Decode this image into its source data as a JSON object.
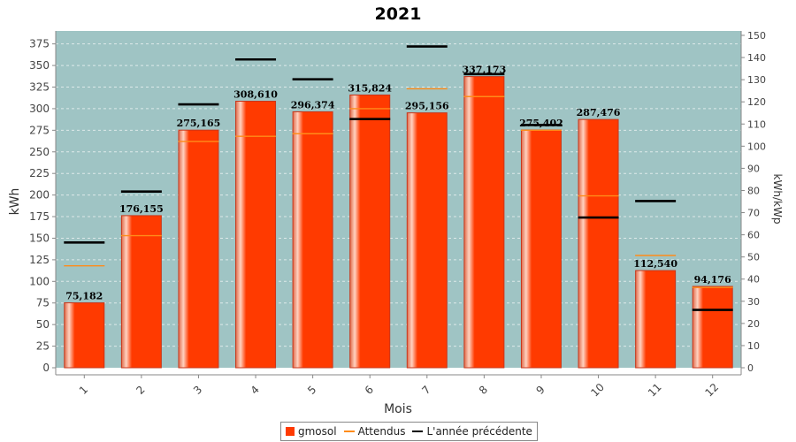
{
  "chart_data": {
    "type": "bar",
    "title": "2021",
    "xlabel": "Mois",
    "ylabel": "kWh",
    "y2label": "kWh/kWp",
    "ylim": [
      0,
      390
    ],
    "y2lim": [
      0,
      152
    ],
    "yticks": [
      0,
      25,
      50,
      75,
      100,
      125,
      150,
      175,
      200,
      225,
      250,
      275,
      300,
      325,
      350,
      375
    ],
    "y2ticks": [
      0,
      10,
      20,
      30,
      40,
      50,
      60,
      70,
      80,
      90,
      100,
      110,
      120,
      130,
      140,
      150
    ],
    "categories": [
      "1",
      "2",
      "3",
      "4",
      "5",
      "6",
      "7",
      "8",
      "9",
      "10",
      "11",
      "12"
    ],
    "grid": true,
    "legend_position": "bottom",
    "series": [
      {
        "name": "gmosol",
        "kind": "bar",
        "color": "#ff3a00",
        "values": [
          75.182,
          176.155,
          275.165,
          308.61,
          296.374,
          315.824,
          295.156,
          337.173,
          275.402,
          287.476,
          112.54,
          94.176
        ],
        "labels": [
          "75,182",
          "176,155",
          "275,165",
          "308,610",
          "296,374",
          "315,824",
          "295,156",
          "337,173",
          "275,402",
          "287,476",
          "112,540",
          "94,176"
        ]
      },
      {
        "name": "Attendus",
        "kind": "marker",
        "color": "#ff8c1a",
        "values": [
          118,
          153,
          262,
          268,
          271,
          300,
          323,
          314,
          275,
          199,
          130,
          93
        ]
      },
      {
        "name": "L'année précédente",
        "kind": "marker",
        "color": "#000000",
        "values": [
          145,
          204,
          305,
          357,
          334,
          288,
          372,
          340,
          281,
          174,
          193,
          67
        ]
      }
    ],
    "colors": {
      "plot_background": "#9fc4c4",
      "grid": "#dde9e9"
    }
  }
}
